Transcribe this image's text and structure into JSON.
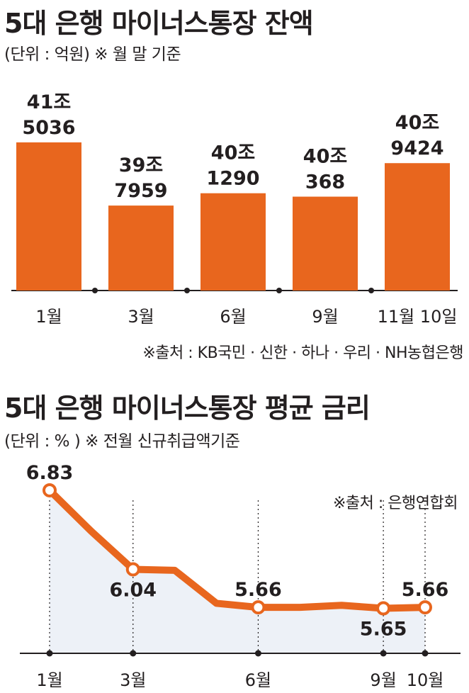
{
  "colors": {
    "accent": "#e8661e",
    "text": "#231f20",
    "area": "#edf1f7"
  },
  "bar_section": {
    "title": "5대 은행 마이너스통장 잔액",
    "subtitle": "(단위 : 억원)  ※ 월 말 기준",
    "source": "※출처 : KB국민 · 신한 · 하나 · 우리 · NH농협은행"
  },
  "line_section": {
    "title": "5대 은행 마이너스통장 평균 금리",
    "subtitle": "(단위 : % )  ※ 전월 신규취급액기준",
    "source": "※출처 : 은행연합회"
  },
  "chart_data": [
    {
      "type": "bar",
      "title": "5대 은행 마이너스통장 잔액",
      "unit": "억원",
      "categories": [
        "1월",
        "3월",
        "6월",
        "9월",
        "11월 10일"
      ],
      "values": [
        415036,
        397959,
        401290,
        400368,
        409424
      ],
      "value_labels": [
        [
          "41조",
          "5036"
        ],
        [
          "39조",
          "7959"
        ],
        [
          "40조",
          "1290"
        ],
        [
          "40조",
          "368"
        ],
        [
          "40조",
          "9424"
        ]
      ],
      "ylim": [
        375000,
        420000
      ]
    },
    {
      "type": "line",
      "title": "5대 은행 마이너스통장 평균 금리",
      "unit": "%",
      "x": [
        1,
        2,
        3,
        4,
        5,
        6,
        7,
        8,
        9,
        10
      ],
      "y": [
        6.83,
        6.42,
        6.04,
        6.03,
        5.7,
        5.66,
        5.66,
        5.68,
        5.65,
        5.66
      ],
      "xticks": [
        {
          "x": 1,
          "label": "1월"
        },
        {
          "x": 3,
          "label": "3월"
        },
        {
          "x": 6,
          "label": "6월"
        },
        {
          "x": 9,
          "label": "9월"
        },
        {
          "x": 10,
          "label": "10월"
        }
      ],
      "labeled_points": [
        {
          "x": 1,
          "label": "6.83",
          "pos": "above"
        },
        {
          "x": 3,
          "label": "6.04",
          "pos": "below"
        },
        {
          "x": 6,
          "label": "5.66",
          "pos": "above"
        },
        {
          "x": 9,
          "label": "5.65",
          "pos": "below"
        },
        {
          "x": 10,
          "label": "5.66",
          "pos": "above"
        }
      ],
      "ylim": [
        5.2,
        7.0
      ]
    }
  ]
}
